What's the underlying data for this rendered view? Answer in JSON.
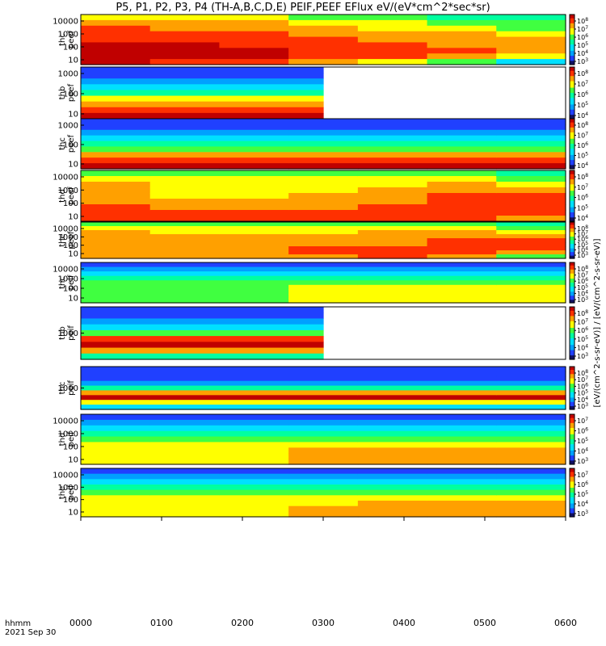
{
  "chart_data": {
    "type": "heatmap",
    "title": "P5, P1, P2, P3, P4 (TH-A,B,C,D,E) PEIF,PEEF EFlux eV/(eV*cm^2*sec*sr)",
    "time_axis": {
      "label_line1": "hhmm",
      "label_line2": "2021 Sep 30",
      "ticks": [
        "0000",
        "0100",
        "0200",
        "0300",
        "0400",
        "0500",
        "0600"
      ],
      "range_hours": [
        0,
        6
      ]
    },
    "colorbar_label": "[eV/(cm^2-s-sr-eV)] / [eV/(cm^2-s-sr-eV)]",
    "panels": [
      {
        "name": "thc peef",
        "line1": "thc",
        "line2": "peef",
        "y_ticks": [
          "10000",
          "1000",
          "100",
          "10"
        ],
        "colorbar_ticks": [
          "10^8",
          "10^7",
          "10^6",
          "10^5",
          "10^4",
          "10^3"
        ],
        "data_end_hour": 6,
        "levels": [
          [
            6,
            7,
            8,
            8,
            8,
            9,
            9,
            9,
            9
          ],
          [
            6,
            7,
            7,
            8,
            8,
            9,
            9,
            9,
            8
          ],
          [
            6,
            7,
            7,
            8,
            8,
            8,
            9,
            9,
            8
          ],
          [
            5,
            6,
            7,
            7,
            8,
            8,
            8,
            8,
            7
          ],
          [
            5,
            6,
            6,
            7,
            7,
            8,
            8,
            8,
            6
          ],
          [
            4,
            5,
            6,
            7,
            7,
            7,
            8,
            7,
            5
          ],
          [
            4,
            5,
            5,
            6,
            7,
            7,
            7,
            6,
            3
          ]
        ]
      },
      {
        "name": "thb peef",
        "line1": "thb",
        "line2": "peef",
        "y_ticks": [
          "1000",
          "100",
          "10"
        ],
        "colorbar_ticks": [
          "10^8",
          "10^7",
          "10^6",
          "10^5",
          "10^4"
        ],
        "data_end_hour": 3,
        "levels": [
          [
            1,
            1,
            2,
            3,
            4,
            6,
            7,
            8,
            9
          ],
          [
            1,
            1,
            2,
            3,
            4,
            6,
            7,
            8,
            9
          ],
          [
            1,
            1,
            2,
            3,
            4,
            6,
            7,
            8,
            9
          ]
        ]
      },
      {
        "name": "thc peef",
        "line1": "thc",
        "line2": "peef",
        "y_ticks": [
          "1000",
          "100",
          "10"
        ],
        "colorbar_ticks": [
          "10^8",
          "10^7",
          "10^6",
          "10^5",
          "10^4"
        ],
        "data_end_hour": 6,
        "levels": [
          [
            1,
            1,
            2,
            3,
            4,
            5,
            7,
            8,
            9
          ],
          [
            1,
            1,
            2,
            3,
            4,
            5,
            7,
            8,
            9
          ],
          [
            1,
            1,
            2,
            3,
            4,
            5,
            7,
            8,
            9
          ],
          [
            1,
            1,
            2,
            3,
            4,
            5,
            7,
            8,
            9
          ],
          [
            1,
            1,
            2,
            3,
            4,
            5,
            7,
            8,
            9
          ],
          [
            1,
            1,
            2,
            3,
            4,
            5,
            7,
            8,
            9
          ],
          [
            1,
            1,
            2,
            3,
            4,
            5,
            7,
            8,
            9
          ]
        ]
      },
      {
        "name": "thd peef",
        "line1": "thd",
        "line2": "peef",
        "y_ticks": [
          "10000",
          "1000",
          "100",
          "10"
        ],
        "colorbar_ticks": [
          "10^8",
          "10^7",
          "10^6",
          "10^5",
          "10^4"
        ],
        "data_end_hour": 6,
        "levels": [
          [
            5,
            6,
            7,
            7,
            7,
            7,
            8,
            8,
            8
          ],
          [
            5,
            6,
            6,
            6,
            6,
            7,
            7,
            8,
            8
          ],
          [
            5,
            6,
            6,
            6,
            6,
            7,
            7,
            8,
            8
          ],
          [
            5,
            6,
            6,
            6,
            7,
            7,
            7,
            8,
            8
          ],
          [
            5,
            6,
            6,
            7,
            7,
            7,
            8,
            8,
            8
          ],
          [
            5,
            6,
            7,
            7,
            8,
            8,
            8,
            8,
            8
          ],
          [
            4,
            5,
            6,
            7,
            8,
            8,
            8,
            8,
            7
          ]
        ]
      },
      {
        "name": "the peef",
        "line1": "the",
        "line2": "peef",
        "y_ticks": [
          "10000",
          "1000",
          "100",
          "10"
        ],
        "colorbar_ticks": [
          "10^8",
          "10^7",
          "10^6",
          "10^5",
          "10^4",
          "10^3"
        ],
        "data_end_hour": 6,
        "levels": [
          [
            5,
            6,
            7,
            7,
            7,
            7,
            7,
            7,
            7
          ],
          [
            5,
            6,
            6,
            7,
            7,
            7,
            7,
            7,
            7
          ],
          [
            5,
            6,
            6,
            7,
            7,
            7,
            7,
            7,
            7
          ],
          [
            5,
            6,
            6,
            7,
            7,
            7,
            8,
            8,
            7
          ],
          [
            5,
            6,
            7,
            7,
            7,
            7,
            8,
            8,
            8
          ],
          [
            5,
            6,
            7,
            7,
            8,
            8,
            8,
            8,
            7
          ],
          [
            4,
            5,
            6,
            7,
            8,
            8,
            8,
            7,
            5
          ]
        ]
      },
      {
        "name": "thc peif",
        "line1": "thc",
        "line2": "peif",
        "y_ticks": [
          "10000",
          "1000",
          "100",
          "10"
        ],
        "colorbar_ticks": [
          "10^8",
          "10^7",
          "10^6",
          "10^5",
          "10^4",
          "10^3"
        ],
        "data_end_hour": 6,
        "levels": [
          [
            1,
            2,
            3,
            4,
            5,
            5,
            5,
            5,
            5
          ],
          [
            1,
            2,
            3,
            4,
            5,
            5,
            5,
            5,
            5
          ],
          [
            1,
            2,
            3,
            4,
            5,
            5,
            5,
            5,
            5
          ],
          [
            1,
            2,
            3,
            4,
            5,
            6,
            6,
            6,
            6
          ],
          [
            1,
            2,
            3,
            4,
            5,
            6,
            6,
            6,
            6
          ],
          [
            1,
            2,
            3,
            4,
            5,
            6,
            6,
            6,
            6
          ],
          [
            1,
            2,
            3,
            4,
            5,
            6,
            6,
            6,
            6
          ]
        ]
      },
      {
        "name": "thb peif",
        "line1": "thb",
        "line2": "peif",
        "y_ticks": [
          "1000"
        ],
        "colorbar_ticks": [
          "10^8",
          "10^7",
          "10^6",
          "10^5",
          "10^4",
          "10^3"
        ],
        "data_end_hour": 3,
        "levels": [
          [
            1,
            1,
            2,
            3,
            5,
            8,
            9,
            7,
            4
          ],
          [
            1,
            1,
            2,
            3,
            5,
            8,
            9,
            7,
            4
          ],
          [
            1,
            1,
            2,
            3,
            5,
            8,
            9,
            7,
            4
          ]
        ]
      },
      {
        "name": "thc peif",
        "line1": "thc",
        "line2": "peif",
        "y_ticks": [
          "1000"
        ],
        "colorbar_ticks": [
          "10^8",
          "10^7",
          "10^6",
          "10^5",
          "10^4",
          "10^3"
        ],
        "data_end_hour": 6,
        "levels": [
          [
            1,
            1,
            1,
            2,
            4,
            7,
            9,
            6,
            3
          ],
          [
            1,
            1,
            1,
            2,
            4,
            7,
            9,
            6,
            3
          ],
          [
            1,
            1,
            1,
            2,
            4,
            7,
            9,
            6,
            3
          ],
          [
            1,
            1,
            1,
            2,
            4,
            7,
            9,
            6,
            3
          ],
          [
            1,
            1,
            1,
            2,
            4,
            7,
            9,
            6,
            3
          ],
          [
            1,
            1,
            1,
            2,
            4,
            7,
            9,
            6,
            3
          ],
          [
            1,
            1,
            1,
            2,
            4,
            7,
            9,
            6,
            3
          ]
        ]
      },
      {
        "name": "thd peif",
        "line1": "thd",
        "line2": "peif",
        "y_ticks": [
          "10000",
          "1000",
          "100",
          "10"
        ],
        "colorbar_ticks": [
          "10^7",
          "10^6",
          "10^5",
          "10^4",
          "10^3"
        ],
        "data_end_hour": 6,
        "levels": [
          [
            1,
            2,
            3,
            4,
            5,
            6,
            6,
            6,
            6
          ],
          [
            1,
            2,
            3,
            4,
            5,
            6,
            6,
            6,
            6
          ],
          [
            1,
            2,
            3,
            4,
            5,
            6,
            6,
            6,
            6
          ],
          [
            1,
            2,
            3,
            4,
            5,
            6,
            7,
            7,
            7
          ],
          [
            1,
            2,
            3,
            4,
            5,
            6,
            7,
            7,
            7
          ],
          [
            1,
            2,
            3,
            4,
            5,
            6,
            7,
            7,
            7
          ],
          [
            1,
            2,
            3,
            4,
            5,
            6,
            7,
            7,
            7
          ]
        ]
      },
      {
        "name": "the peif",
        "line1": "the",
        "line2": "peif",
        "y_ticks": [
          "10000",
          "1000",
          "100",
          "10"
        ],
        "colorbar_ticks": [
          "10^7",
          "10^6",
          "10^5",
          "10^4",
          "10^3"
        ],
        "data_end_hour": 6,
        "levels": [
          [
            1,
            2,
            3,
            4,
            5,
            6,
            6,
            6,
            6
          ],
          [
            1,
            2,
            3,
            4,
            5,
            6,
            6,
            6,
            6
          ],
          [
            1,
            2,
            3,
            4,
            5,
            6,
            6,
            6,
            6
          ],
          [
            1,
            2,
            3,
            4,
            5,
            6,
            6,
            7,
            7
          ],
          [
            1,
            2,
            3,
            4,
            5,
            6,
            7,
            7,
            7
          ],
          [
            1,
            2,
            3,
            4,
            5,
            6,
            7,
            7,
            7
          ],
          [
            1,
            2,
            3,
            4,
            5,
            6,
            7,
            7,
            7
          ]
        ]
      }
    ]
  }
}
